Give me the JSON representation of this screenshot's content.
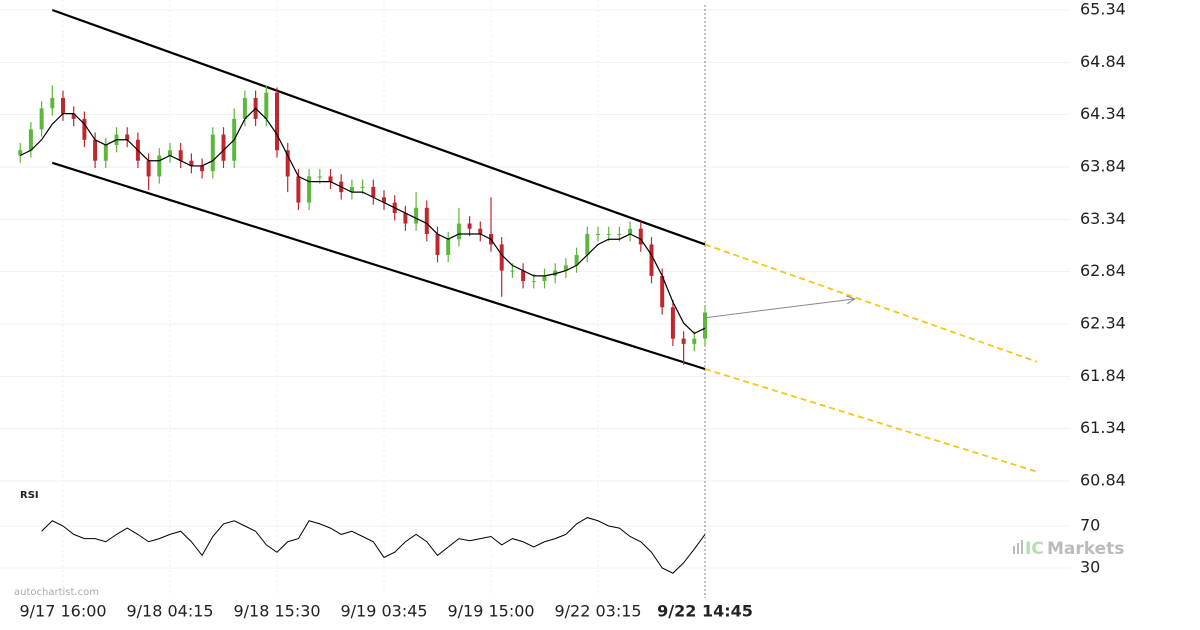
{
  "chart_data": {
    "type": "candlestick",
    "categories": [
      null,
      null,
      null,
      null,
      "9/17 16:00",
      null,
      null,
      null,
      null,
      null,
      null,
      null,
      null,
      null,
      "9/18 04:15",
      null,
      null,
      null,
      null,
      null,
      null,
      null,
      null,
      null,
      "9/18 15:30",
      null,
      null,
      null,
      null,
      null,
      null,
      null,
      null,
      null,
      "9/19 03:45",
      null,
      null,
      null,
      null,
      null,
      null,
      null,
      null,
      null,
      "9/19 15:00",
      null,
      null,
      null,
      null,
      null,
      null,
      null,
      null,
      null,
      "9/22 03:15",
      null,
      null,
      null,
      null,
      null,
      null,
      null,
      null,
      null,
      "9/22 14:45"
    ],
    "open": [
      63.95,
      64.0,
      64.2,
      64.4,
      64.5,
      64.35,
      64.3,
      64.1,
      63.9,
      64.05,
      64.15,
      64.1,
      63.9,
      63.75,
      63.95,
      64.0,
      63.9,
      63.85,
      63.8,
      64.15,
      63.9,
      64.3,
      64.5,
      64.3,
      64.55,
      64.0,
      63.75,
      63.5,
      63.75,
      63.75,
      63.7,
      63.6,
      63.65,
      63.65,
      63.55,
      63.5,
      63.4,
      63.3,
      63.45,
      63.2,
      63.0,
      63.15,
      63.3,
      63.25,
      63.2,
      63.1,
      62.85,
      62.85,
      62.75,
      62.75,
      62.8,
      62.85,
      62.9,
      63.0,
      63.2,
      63.2,
      63.2,
      63.2,
      63.25,
      63.1,
      62.8,
      62.5,
      62.2,
      62.15,
      62.2
    ],
    "high": [
      64.07,
      64.27,
      64.47,
      64.62,
      64.57,
      64.42,
      64.37,
      64.17,
      64.12,
      64.22,
      64.22,
      64.17,
      63.97,
      64.02,
      64.07,
      64.07,
      63.97,
      63.92,
      64.22,
      64.22,
      64.4,
      64.57,
      64.57,
      64.62,
      64.6,
      64.07,
      63.82,
      63.82,
      63.82,
      63.82,
      63.77,
      63.72,
      63.72,
      63.72,
      63.62,
      63.57,
      63.47,
      63.6,
      63.52,
      63.27,
      63.22,
      63.45,
      63.37,
      63.32,
      63.55,
      63.17,
      62.92,
      62.92,
      62.82,
      62.87,
      62.92,
      62.97,
      63.07,
      63.27,
      63.27,
      63.27,
      63.27,
      63.32,
      63.32,
      63.17,
      62.87,
      62.57,
      62.27,
      62.27,
      62.52
    ],
    "low": [
      63.88,
      63.93,
      64.13,
      64.33,
      64.28,
      64.23,
      64.03,
      63.83,
      63.83,
      63.98,
      64.03,
      63.83,
      63.62,
      63.68,
      63.88,
      63.83,
      63.78,
      63.73,
      63.73,
      63.83,
      63.83,
      64.23,
      64.23,
      64.23,
      63.93,
      63.6,
      63.43,
      63.43,
      63.68,
      63.63,
      63.53,
      63.53,
      63.58,
      63.48,
      63.43,
      63.33,
      63.23,
      63.23,
      63.13,
      62.93,
      62.93,
      63.08,
      63.18,
      63.13,
      63.03,
      62.6,
      62.78,
      62.68,
      62.68,
      62.68,
      62.73,
      62.78,
      62.83,
      62.93,
      63.13,
      63.13,
      63.13,
      63.13,
      63.03,
      62.73,
      62.43,
      62.13,
      61.95,
      62.08,
      62.13
    ],
    "close": [
      64.0,
      64.2,
      64.4,
      64.5,
      64.35,
      64.3,
      64.1,
      63.9,
      64.05,
      64.15,
      64.1,
      63.9,
      63.75,
      63.95,
      64.0,
      63.9,
      63.85,
      63.8,
      64.15,
      63.9,
      64.3,
      64.5,
      64.3,
      64.55,
      64.0,
      63.75,
      63.5,
      63.75,
      63.75,
      63.7,
      63.6,
      63.65,
      63.65,
      63.55,
      63.5,
      63.4,
      63.3,
      63.45,
      63.2,
      63.0,
      63.15,
      63.3,
      63.25,
      63.2,
      63.1,
      62.85,
      62.85,
      62.75,
      62.75,
      62.8,
      62.85,
      62.9,
      63.0,
      63.2,
      63.2,
      63.2,
      63.2,
      63.25,
      63.1,
      62.8,
      62.5,
      62.2,
      62.15,
      62.2,
      62.45
    ],
    "up_color": "#5cb83a",
    "down_color": "#c0262d",
    "moving_average": {
      "color": "#000000",
      "values": [
        63.95,
        64.0,
        64.1,
        64.25,
        64.35,
        64.35,
        64.25,
        64.1,
        64.05,
        64.1,
        64.1,
        64.0,
        63.9,
        63.9,
        63.95,
        63.9,
        63.85,
        63.85,
        63.9,
        64.0,
        64.1,
        64.3,
        64.4,
        64.3,
        64.15,
        63.95,
        63.75,
        63.7,
        63.7,
        63.7,
        63.65,
        63.6,
        63.6,
        63.55,
        63.5,
        63.45,
        63.4,
        63.35,
        63.3,
        63.2,
        63.15,
        63.2,
        63.2,
        63.2,
        63.15,
        63.0,
        62.9,
        62.85,
        62.8,
        62.8,
        62.82,
        62.85,
        62.9,
        63.0,
        63.1,
        63.15,
        63.15,
        63.2,
        63.15,
        63.0,
        62.8,
        62.55,
        62.35,
        62.25,
        62.3
      ]
    },
    "ylim": [
      60.84,
      65.34
    ],
    "yticks": [
      65.34,
      64.84,
      64.34,
      63.84,
      63.34,
      62.84,
      62.34,
      61.84,
      61.34,
      60.84
    ],
    "grid": true,
    "channel": {
      "color": "#000000",
      "upper": {
        "x": [
          3,
          64
        ],
        "y": [
          65.34,
          63.1
        ]
      },
      "lower": {
        "x": [
          3,
          64
        ],
        "y": [
          63.88,
          61.91
        ]
      }
    },
    "projection": {
      "color": "#f5c518",
      "upper": {
        "x": [
          64,
          95
        ],
        "y": [
          63.1,
          61.98
        ]
      },
      "lower": {
        "x": [
          64,
          95
        ],
        "y": [
          61.91,
          60.93
        ]
      }
    },
    "forecast_arrow": {
      "color": "#888888",
      "x": [
        64,
        78
      ],
      "y": [
        62.4,
        62.58
      ]
    },
    "rsi": {
      "label": "RSI",
      "color": "#000000",
      "ylim": [
        10,
        90
      ],
      "yticks": [
        70,
        30
      ],
      "values": [
        null,
        null,
        65,
        75,
        70,
        62,
        58,
        58,
        55,
        62,
        68,
        62,
        55,
        58,
        62,
        65,
        55,
        42,
        60,
        72,
        75,
        70,
        65,
        52,
        45,
        55,
        58,
        75,
        72,
        68,
        62,
        65,
        60,
        55,
        40,
        45,
        55,
        62,
        55,
        42,
        50,
        58,
        56,
        58,
        60,
        52,
        58,
        55,
        50,
        55,
        58,
        62,
        72,
        78,
        75,
        70,
        68,
        60,
        55,
        45,
        30,
        25,
        35,
        48,
        62
      ]
    },
    "watermark": "autochartist.com",
    "logo": {
      "prefix": "IC",
      "text": "Markets"
    }
  }
}
